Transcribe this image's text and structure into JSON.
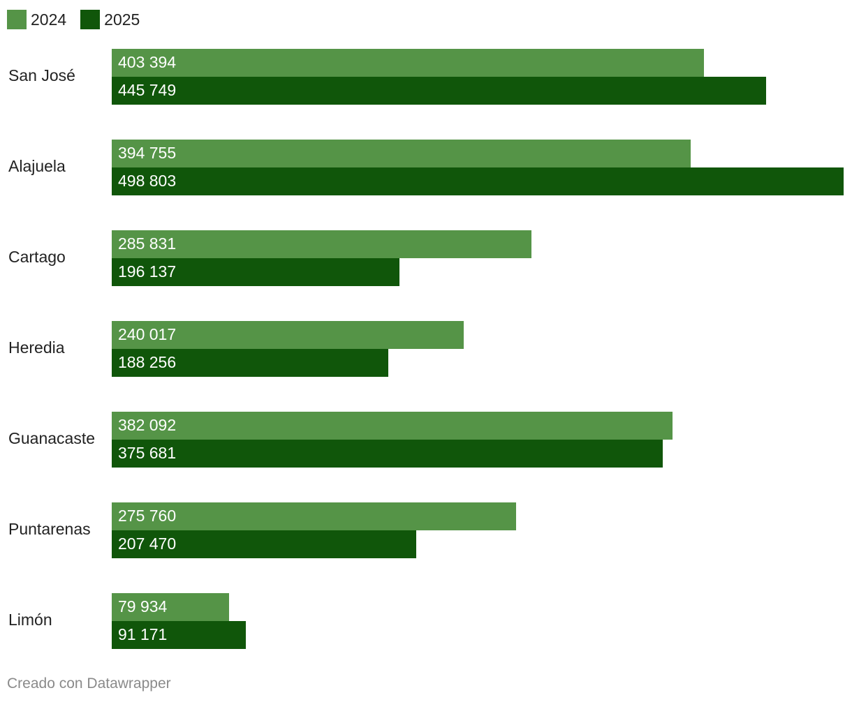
{
  "chart_data": {
    "type": "bar",
    "orientation": "horizontal",
    "categories": [
      "San José",
      "Alajuela",
      "Cartago",
      "Heredia",
      "Guanacaste",
      "Puntarenas",
      "Limón"
    ],
    "series": [
      {
        "name": "2024",
        "color": "#559447",
        "values": [
          403394,
          394755,
          285831,
          240017,
          382092,
          275760,
          79934
        ],
        "labels": [
          "403 394",
          "394 755",
          "285 831",
          "240 017",
          "382 092",
          "275 760",
          "79 934"
        ]
      },
      {
        "name": "2025",
        "color": "#10560a",
        "values": [
          445749,
          498803,
          196137,
          188256,
          375681,
          207470,
          91171
        ],
        "labels": [
          "445 749",
          "498 803",
          "196 137",
          "188 256",
          "375 681",
          "207 470",
          "91 171"
        ]
      }
    ],
    "xlim": [
      0,
      498803
    ],
    "legend_position": "top-left",
    "grid": false
  },
  "legend": {
    "items": [
      {
        "label": "2024",
        "color": "#559447"
      },
      {
        "label": "2025",
        "color": "#10560a"
      }
    ]
  },
  "footer": {
    "credit": "Creado con Datawrapper"
  }
}
